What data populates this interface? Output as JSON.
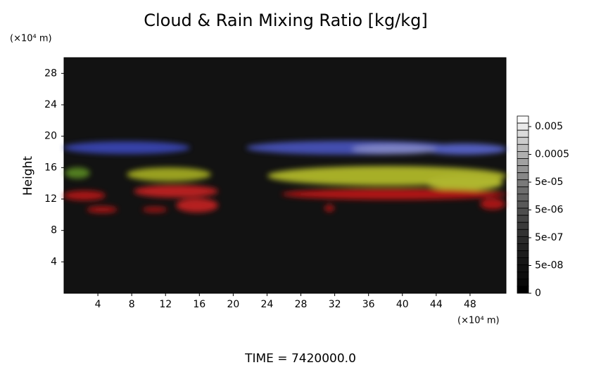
{
  "chart_data": {
    "type": "image",
    "title": "Cloud & Rain Mixing Ratio [kg/kg]",
    "y_label": "Height",
    "y_unit": "(×10⁴ m)",
    "x_unit": "(×10⁴ m)",
    "xlim": [
      0,
      52.25
    ],
    "xticks": [
      4,
      8,
      12,
      16,
      20,
      24,
      28,
      32,
      36,
      40,
      44,
      48
    ],
    "ylim": [
      0,
      30
    ],
    "yticks": [
      4,
      8,
      12,
      16,
      20,
      24,
      28
    ],
    "colorbar": {
      "ticks": [
        0.005,
        0.0005,
        {
          "value": 5e-05,
          "label": "5e-05"
        },
        {
          "value": 5e-06,
          "label": "5e-06"
        },
        {
          "value": 5e-07,
          "label": "5e-07"
        },
        {
          "value": 5e-08,
          "label": "5e-08"
        },
        0
      ]
    },
    "time_label": "TIME = 7420000.0"
  }
}
